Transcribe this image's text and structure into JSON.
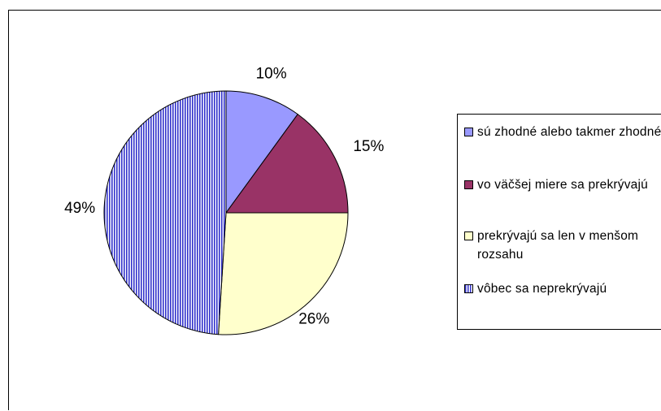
{
  "chart_data": {
    "type": "pie",
    "title": "",
    "start_angle_deg": 0,
    "direction": "clockwise",
    "legend_position": "right",
    "slices": [
      {
        "label": "sú zhodné alebo takmer zhodné",
        "value": 10,
        "display": "10%",
        "color": "#9999ff",
        "pattern": "solid"
      },
      {
        "label": "vo väčšej miere sa prekrývajú",
        "value": 15,
        "display": "15%",
        "color": "#993366",
        "pattern": "solid"
      },
      {
        "label": "prekrývajú sa len v menšom rozsahu",
        "value": 26,
        "display": "26%",
        "color": "#ffffcc",
        "pattern": "solid"
      },
      {
        "label": "vôbec sa neprekrývajú",
        "value": 49,
        "display": "49%",
        "color": "#3333cc",
        "pattern": "vertical-stripes"
      }
    ]
  }
}
